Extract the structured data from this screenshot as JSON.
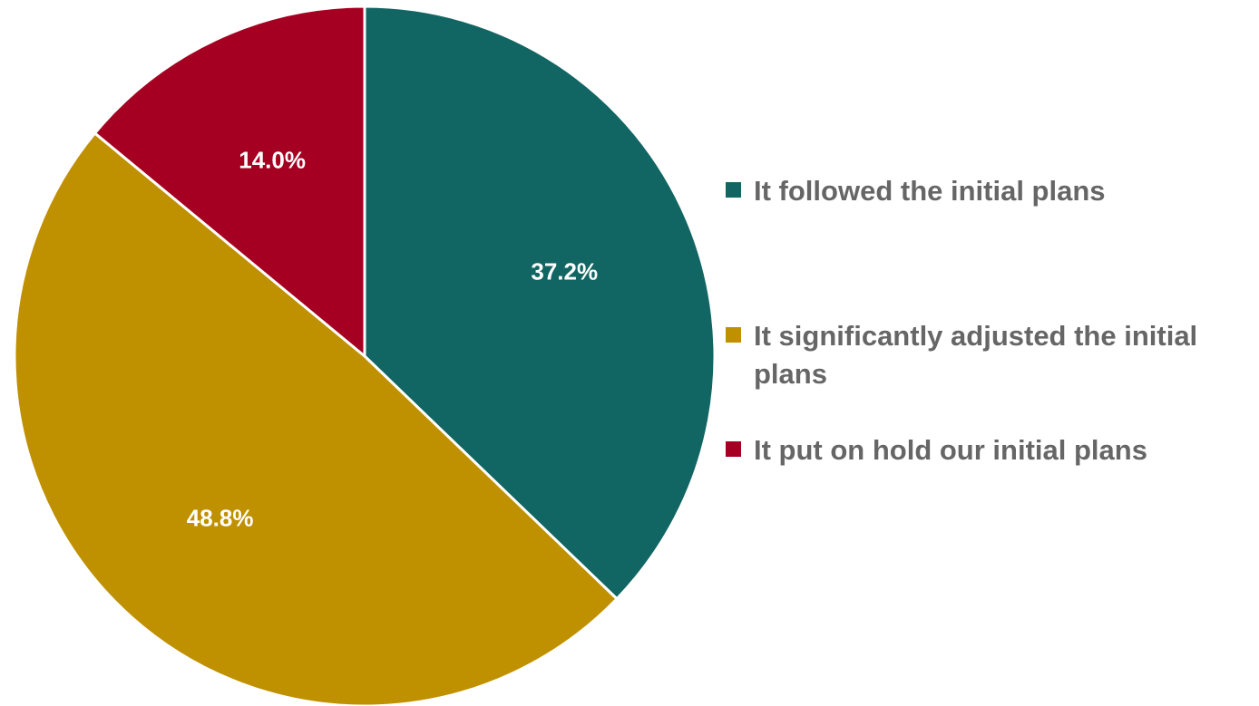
{
  "chart_data": {
    "type": "pie",
    "title": "",
    "legend_position": "right",
    "slices": [
      {
        "label": "It followed the initial plans",
        "value": 37.2,
        "display": "37.2%",
        "color": "#116562"
      },
      {
        "label": "It significantly adjusted the initial plans",
        "value": 48.8,
        "display": "48.8%",
        "color": "#BF9000"
      },
      {
        "label": "It put on hold our initial plans",
        "value": 14.0,
        "display": "14.0%",
        "color": "#A50021"
      }
    ]
  }
}
